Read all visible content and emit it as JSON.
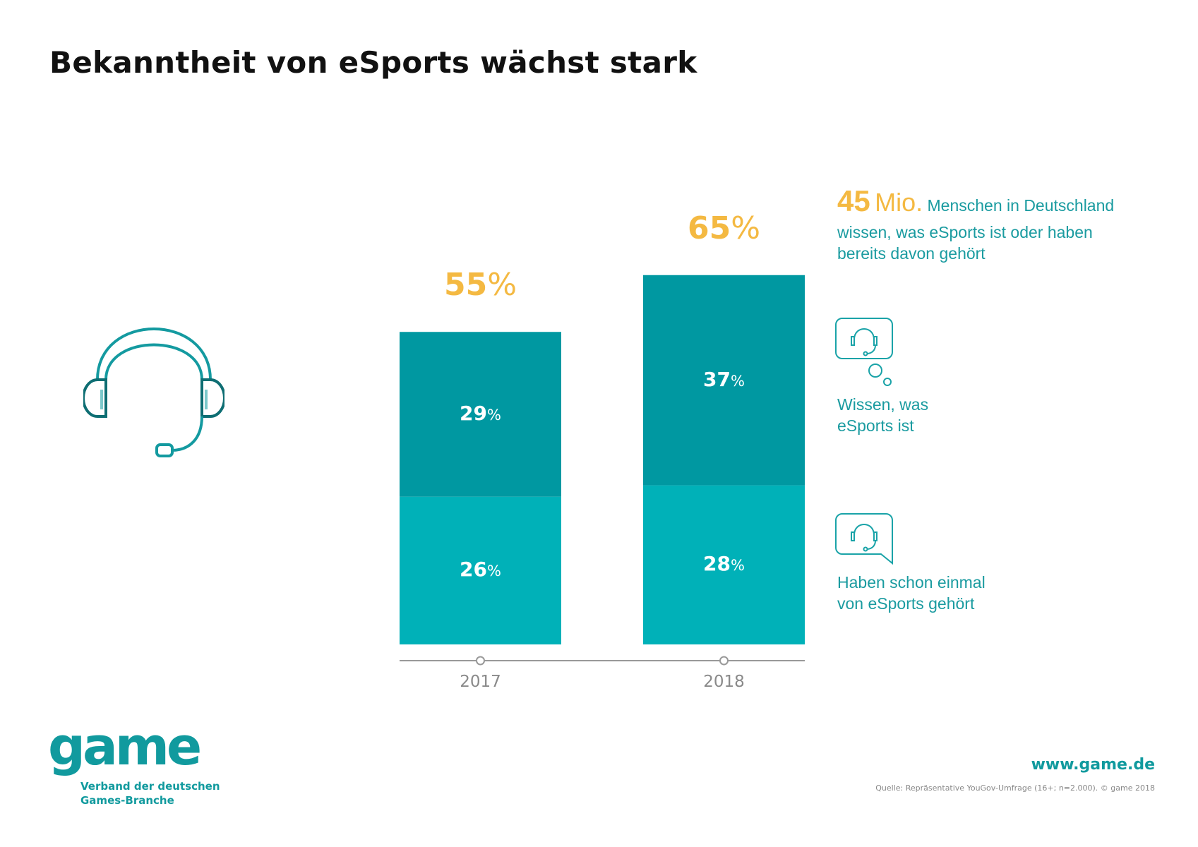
{
  "title": "Bekanntheit von eSports wächst stark",
  "chart_data": {
    "type": "bar",
    "stacked": true,
    "categories": [
      "2017",
      "2018"
    ],
    "series": [
      {
        "name": "Haben schon einmal von eSports gehört",
        "values": [
          26,
          28
        ],
        "color": "#00b1b8"
      },
      {
        "name": "Wissen, was eSports ist",
        "values": [
          29,
          37
        ],
        "color": "#0098a1"
      }
    ],
    "totals": [
      55,
      65
    ],
    "unit": "%",
    "ylim": [
      0,
      65
    ],
    "grid": false,
    "legend_position": "right"
  },
  "headline": {
    "number": "45",
    "unit": "Mio.",
    "text_line1": "Menschen in Deutschland",
    "text_line2": "wissen, was eSports ist oder haben",
    "text_line3": "bereits davon gehört"
  },
  "legend": [
    {
      "icon": "thought-bubble-headset-icon",
      "line1": "Wissen, was",
      "line2": "eSports ist"
    },
    {
      "icon": "speech-bubble-headset-icon",
      "line1": "Haben schon einmal",
      "line2": "von eSports gehört"
    }
  ],
  "footer": {
    "logo": "game",
    "logo_sub1": "Verband der deutschen",
    "logo_sub2": "Games-Branche",
    "url": "www.game.de",
    "source": "Quelle: Repräsentative YouGov-Umfrage (16+; n=2.000). © game 2018"
  },
  "colors": {
    "accent": "#f4b942",
    "teal_dark": "#0098a1",
    "teal_light": "#00b1b8",
    "text_teal": "#1a9ba0"
  }
}
